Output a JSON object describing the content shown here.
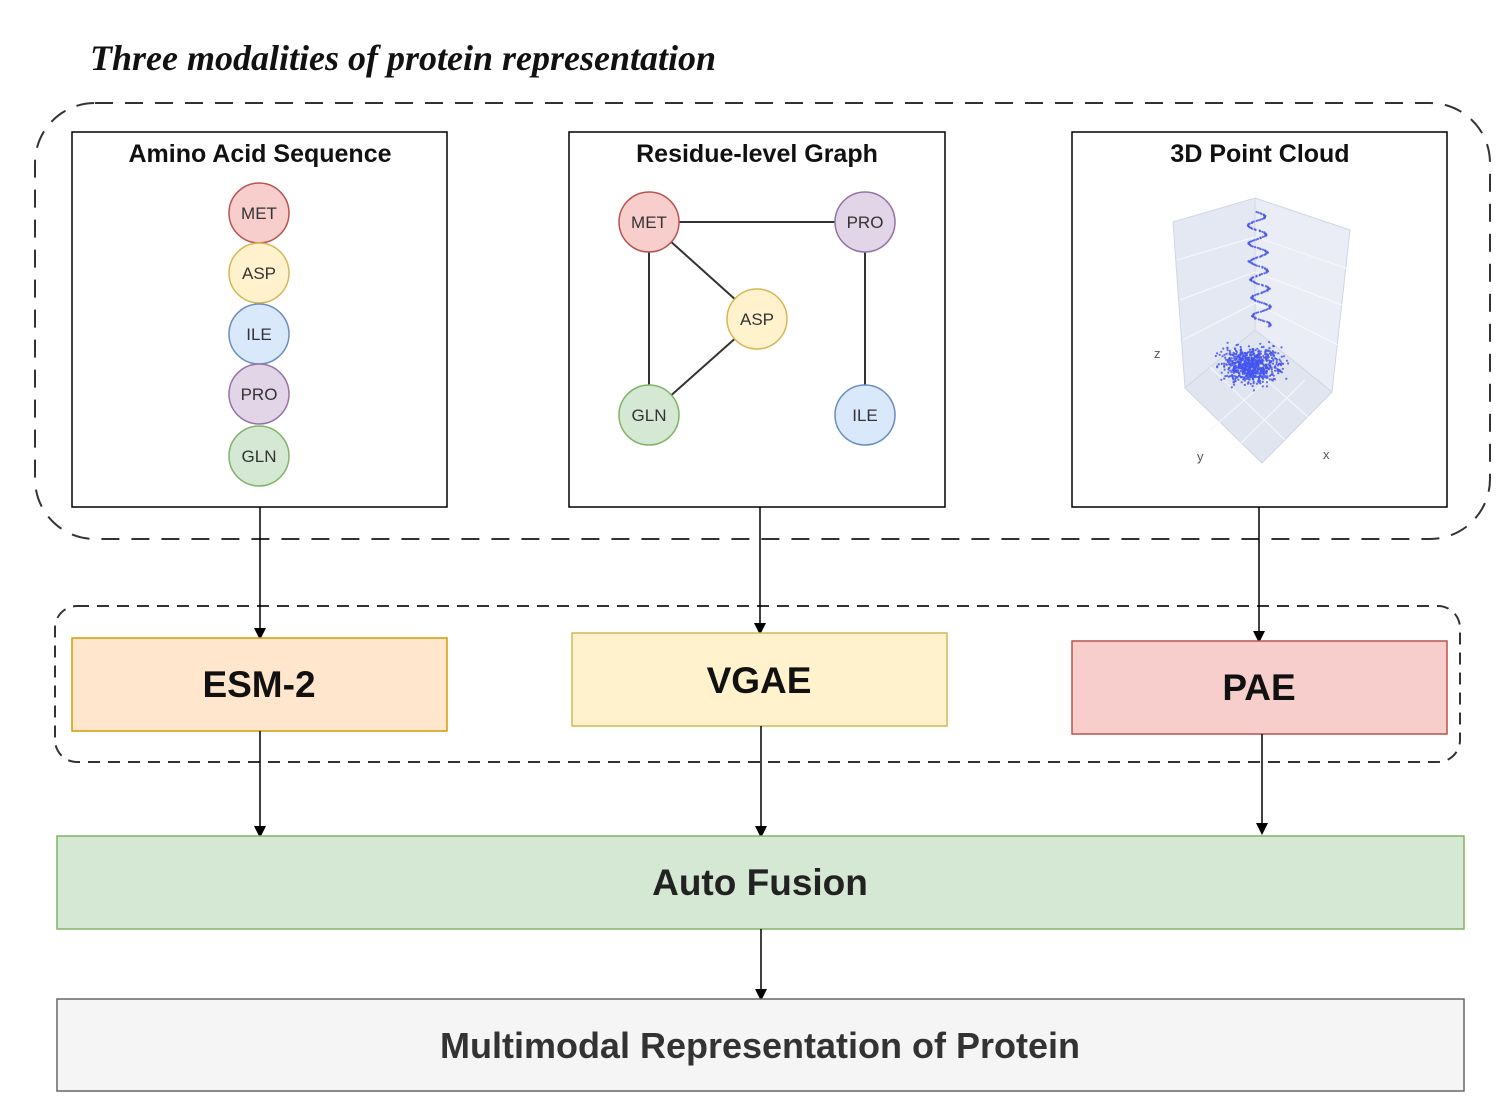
{
  "title": "Three modalities of protein representation",
  "panels": {
    "sequence": {
      "title": "Amino Acid Sequence",
      "residues": [
        "MET",
        "ASP",
        "ILE",
        "PRO",
        "GLN"
      ]
    },
    "graph": {
      "title": "Residue-level Graph",
      "nodes": [
        "MET",
        "PRO",
        "ASP",
        "GLN",
        "ILE"
      ]
    },
    "pointcloud": {
      "title": "3D Point Cloud",
      "axes": {
        "z": "z",
        "y": "y",
        "x": "x"
      }
    }
  },
  "models": {
    "esm": "ESM-2",
    "vgae": "VGAE",
    "pae": "PAE"
  },
  "fusion": "Auto Fusion",
  "output": "Multimodal Representation of Protein",
  "colors": {
    "met": "#f8cecc",
    "met_stroke": "#b85450",
    "asp": "#fff2cc",
    "asp_stroke": "#d6b656",
    "ile": "#dae8fc",
    "ile_stroke": "#6c8ebf",
    "pro": "#e1d5e7",
    "pro_stroke": "#9673a6",
    "gln": "#d5e8d4",
    "gln_stroke": "#82b366",
    "esm_fill": "#ffe6cc",
    "esm_stroke": "#d79b00",
    "vgae_fill": "#fff2cc",
    "vgae_stroke": "#d6b656",
    "pae_fill": "#f8cecc",
    "pae_stroke": "#b85450",
    "fusion_fill": "#d5e8d4",
    "fusion_stroke": "#82b366",
    "output_fill": "#f5f5f5",
    "output_stroke": "#666666",
    "points": "#4455ee"
  }
}
